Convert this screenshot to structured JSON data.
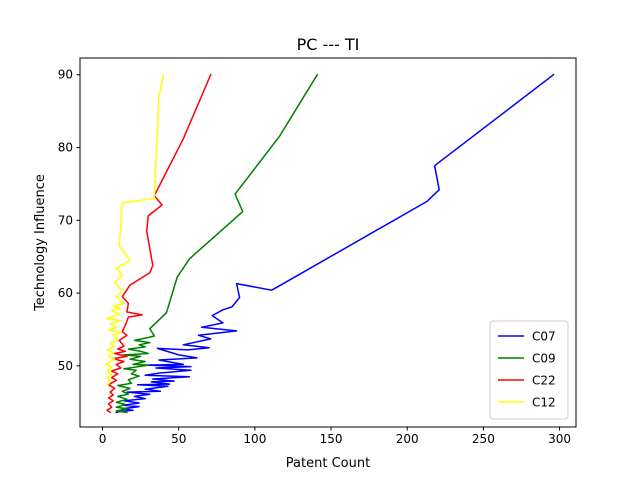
{
  "chart_data": {
    "type": "line",
    "title": "PC --- TI",
    "xlabel": "Patent Count",
    "ylabel": "Technology Influence",
    "xlim": [
      -14.8,
      310.8
    ],
    "ylim": [
      41.6,
      92.3
    ],
    "xticks": [
      0,
      50,
      100,
      150,
      200,
      250,
      300
    ],
    "yticks": [
      50,
      60,
      70,
      80,
      90
    ],
    "grid": false,
    "legend_position": "lower right",
    "series": [
      {
        "name": "C07",
        "color": "#0000ff",
        "points": [
          [
            296,
            90
          ],
          [
            218,
            77.5
          ],
          [
            221,
            74.2
          ],
          [
            213,
            72.6
          ],
          [
            122,
            61.7
          ],
          [
            111,
            60.4
          ],
          [
            88,
            61.3
          ],
          [
            90,
            59.4
          ],
          [
            85,
            58.1
          ],
          [
            79,
            57.7
          ],
          [
            72,
            56.9
          ],
          [
            79,
            55.9
          ],
          [
            65,
            55.3
          ],
          [
            88,
            54.8
          ],
          [
            63,
            54.2
          ],
          [
            71,
            53.7
          ],
          [
            53,
            52.9
          ],
          [
            70,
            52.5
          ],
          [
            56,
            52.2
          ],
          [
            36,
            52.4
          ],
          [
            50,
            51.5
          ],
          [
            62,
            51.1
          ],
          [
            37,
            50.8
          ],
          [
            53,
            50.2
          ],
          [
            29,
            50.1
          ],
          [
            58,
            49.9
          ],
          [
            35,
            49.7
          ],
          [
            58,
            49.4
          ],
          [
            37,
            49.0
          ],
          [
            28,
            48.7
          ],
          [
            57,
            48.5
          ],
          [
            33,
            48.2
          ],
          [
            47,
            47.9
          ],
          [
            32,
            47.8
          ],
          [
            44,
            47.5
          ],
          [
            23,
            47.4
          ],
          [
            43,
            47.2
          ],
          [
            28,
            46.8
          ],
          [
            38,
            46.5
          ],
          [
            16,
            46.4
          ],
          [
            31,
            46.1
          ],
          [
            21,
            45.8
          ],
          [
            28,
            45.5
          ],
          [
            14,
            45.2
          ],
          [
            24,
            44.9
          ],
          [
            14,
            44.6
          ],
          [
            24,
            44.4
          ],
          [
            13,
            44.1
          ],
          [
            20,
            43.9
          ],
          [
            13,
            43.8
          ],
          [
            9,
            43.6
          ]
        ]
      },
      {
        "name": "C09",
        "color": "#008000",
        "points": [
          [
            141,
            90
          ],
          [
            116,
            81.5
          ],
          [
            87,
            73.6
          ],
          [
            92,
            71.2
          ],
          [
            57,
            64.7
          ],
          [
            49,
            62.2
          ],
          [
            42,
            57.3
          ],
          [
            33,
            55.5
          ],
          [
            31,
            55.1
          ],
          [
            34,
            54.1
          ],
          [
            30,
            53.9
          ],
          [
            21,
            53.5
          ],
          [
            31,
            53.2
          ],
          [
            24,
            52.9
          ],
          [
            28,
            52.6
          ],
          [
            17,
            52.3
          ],
          [
            25,
            52.0
          ],
          [
            30,
            51.7
          ],
          [
            14,
            51.5
          ],
          [
            25,
            51.3
          ],
          [
            18,
            50.9
          ],
          [
            28,
            50.6
          ],
          [
            20,
            50.2
          ],
          [
            30,
            50.1
          ],
          [
            14,
            49.6
          ],
          [
            22,
            49.4
          ],
          [
            19,
            48.9
          ],
          [
            24,
            48.6
          ],
          [
            17,
            48.1
          ],
          [
            19,
            47.6
          ],
          [
            10,
            47.3
          ],
          [
            18,
            46.9
          ],
          [
            13,
            46.5
          ],
          [
            17,
            46.1
          ],
          [
            10,
            45.8
          ],
          [
            16,
            45.4
          ],
          [
            9,
            45.0
          ],
          [
            15,
            44.7
          ],
          [
            9,
            44.3
          ],
          [
            16,
            44.1
          ],
          [
            9,
            43.8
          ],
          [
            16,
            43.6
          ]
        ]
      },
      {
        "name": "C22",
        "color": "#ff0000",
        "points": [
          [
            71,
            90
          ],
          [
            53,
            81.2
          ],
          [
            34,
            73.4
          ],
          [
            39,
            72.1
          ],
          [
            30,
            70.6
          ],
          [
            29,
            68.5
          ],
          [
            33,
            63.8
          ],
          [
            31,
            62.8
          ],
          [
            18,
            61.1
          ],
          [
            13,
            59.5
          ],
          [
            17,
            58.6
          ],
          [
            16,
            57.4
          ],
          [
            26,
            57.0
          ],
          [
            17,
            56.7
          ],
          [
            15,
            55.6
          ],
          [
            13,
            54.7
          ],
          [
            16,
            54.2
          ],
          [
            11,
            53.5
          ],
          [
            14,
            52.7
          ],
          [
            10,
            52.3
          ],
          [
            15,
            52.0
          ],
          [
            8,
            51.7
          ],
          [
            16,
            51.3
          ],
          [
            7,
            51.0
          ],
          [
            14,
            50.6
          ],
          [
            9,
            50.2
          ],
          [
            12,
            49.7
          ],
          [
            6,
            49.3
          ],
          [
            10,
            48.9
          ],
          [
            6,
            48.4
          ],
          [
            9,
            48.0
          ],
          [
            4,
            47.4
          ],
          [
            8,
            46.9
          ],
          [
            5,
            46.4
          ],
          [
            7,
            46.0
          ],
          [
            4,
            45.6
          ],
          [
            7,
            45.2
          ],
          [
            4,
            44.8
          ],
          [
            6,
            44.3
          ],
          [
            3,
            43.9
          ],
          [
            5,
            43.6
          ]
        ]
      },
      {
        "name": "C12",
        "color": "#ffff00",
        "points": [
          [
            40,
            90
          ],
          [
            37,
            87.0
          ],
          [
            34,
            73.0
          ],
          [
            13,
            72.4
          ],
          [
            11,
            66.5
          ],
          [
            18,
            64.5
          ],
          [
            9,
            63.4
          ],
          [
            13,
            62.5
          ],
          [
            8,
            61.4
          ],
          [
            13,
            60.4
          ],
          [
            9,
            59.4
          ],
          [
            14,
            58.6
          ],
          [
            7,
            58.2
          ],
          [
            12,
            57.9
          ],
          [
            6,
            57.6
          ],
          [
            11,
            57.1
          ],
          [
            3,
            56.5
          ],
          [
            12,
            56.2
          ],
          [
            5,
            55.8
          ],
          [
            9,
            55.3
          ],
          [
            4,
            54.9
          ],
          [
            12,
            54.6
          ],
          [
            7,
            54.2
          ],
          [
            10,
            53.6
          ],
          [
            5,
            53.1
          ],
          [
            8,
            52.7
          ],
          [
            3,
            52.2
          ],
          [
            7,
            51.8
          ],
          [
            4,
            51.3
          ],
          [
            8,
            50.9
          ],
          [
            2,
            50.2
          ],
          [
            6,
            49.8
          ],
          [
            3,
            49.3
          ],
          [
            6,
            48.8
          ],
          [
            3,
            48.3
          ],
          [
            5,
            47.8
          ],
          [
            3,
            47.3
          ]
        ]
      }
    ]
  }
}
